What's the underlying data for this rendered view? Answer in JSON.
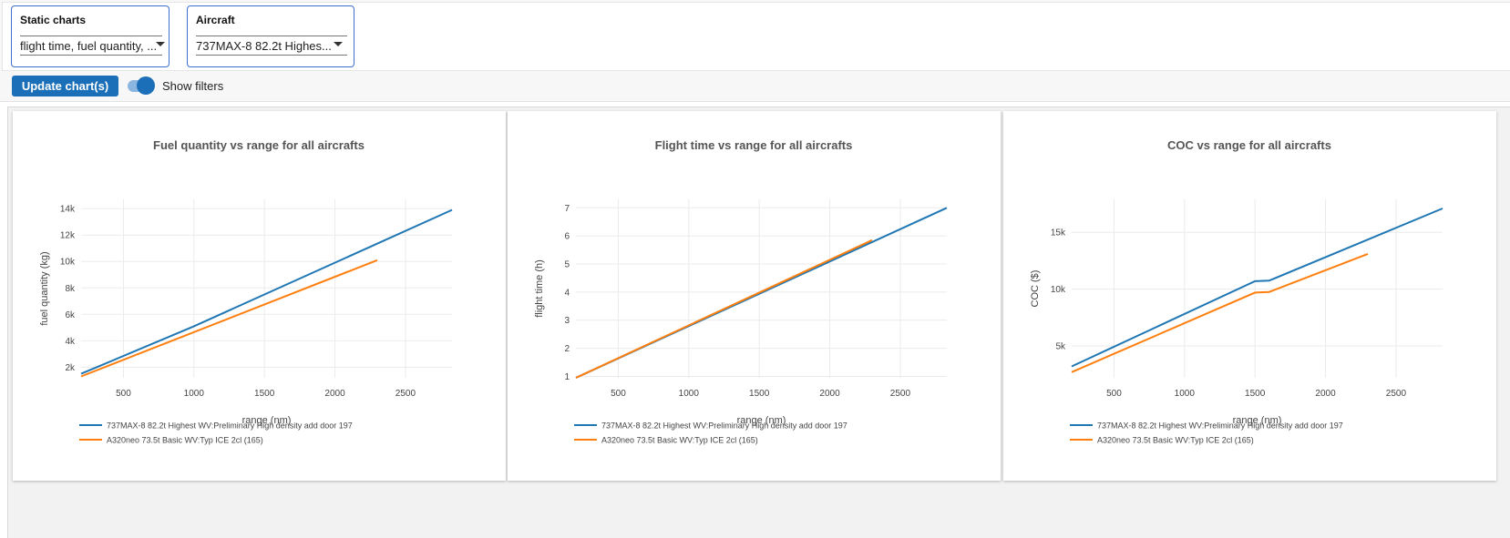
{
  "filters": {
    "static_charts": {
      "label": "Static charts",
      "value": "flight time, fuel quantity, ..."
    },
    "aircraft": {
      "label": "Aircraft",
      "value": "737MAX-8 82.2t Highes..."
    }
  },
  "toolbar": {
    "update_label": "Update chart(s)",
    "show_filters_label": "Show filters",
    "show_filters_on": true
  },
  "colors": {
    "series1": "#1f77b4",
    "series2": "#ff7f0e",
    "accent": "#1a6fb8"
  },
  "chart_data": [
    {
      "type": "line",
      "title": "Fuel quantity vs range for all aircrafts",
      "xlabel": "range (nm)",
      "ylabel": "fuel quantity (kg)",
      "xlim": [
        200,
        2830
      ],
      "ylim": [
        1200,
        14700
      ],
      "x_ticks": [
        500,
        1000,
        1500,
        2000,
        2500
      ],
      "y_ticks": [
        2000,
        4000,
        6000,
        8000,
        10000,
        12000,
        14000
      ],
      "y_tick_labels": [
        "2k",
        "4k",
        "6k",
        "8k",
        "10k",
        "12k",
        "14k"
      ],
      "grid": true,
      "legend_position": "bottom-left",
      "series": [
        {
          "name": "737MAX-8 82.2t Highest WV:Preliminary High density add door 197",
          "color": "#1f77b4",
          "x": [
            200,
            1000,
            2830
          ],
          "y": [
            1500,
            5100,
            13900
          ]
        },
        {
          "name": "A320neo 73.5t Basic WV:Typ ICE 2cl (165)",
          "color": "#ff7f0e",
          "x": [
            200,
            2300
          ],
          "y": [
            1300,
            10100
          ]
        }
      ]
    },
    {
      "type": "line",
      "title": "Flight time vs range for all aircrafts",
      "xlabel": "range (nm)",
      "ylabel": "flight time (h)",
      "xlim": [
        200,
        2830
      ],
      "ylim": [
        0.95,
        7.3
      ],
      "x_ticks": [
        500,
        1000,
        1500,
        2000,
        2500
      ],
      "y_ticks": [
        1,
        2,
        3,
        4,
        5,
        6,
        7
      ],
      "y_tick_labels": [
        "1",
        "2",
        "3",
        "4",
        "5",
        "6",
        "7"
      ],
      "grid": true,
      "legend_position": "bottom-left",
      "series": [
        {
          "name": "737MAX-8 82.2t Highest WV:Preliminary High density add door 197",
          "color": "#1f77b4",
          "x": [
            200,
            2830
          ],
          "y": [
            0.95,
            7.0
          ]
        },
        {
          "name": "A320neo 73.5t Basic WV:Typ ICE 2cl (165)",
          "color": "#ff7f0e",
          "x": [
            200,
            2300
          ],
          "y": [
            0.95,
            5.85
          ]
        }
      ]
    },
    {
      "type": "line",
      "title": "COC vs range for all aircrafts",
      "xlabel": "range (nm)",
      "ylabel": "COC ($)",
      "xlim": [
        200,
        2830
      ],
      "ylim": [
        2200,
        17900
      ],
      "x_ticks": [
        500,
        1000,
        1500,
        2000,
        2500
      ],
      "y_ticks": [
        5000,
        10000,
        15000
      ],
      "y_tick_labels": [
        "5k",
        "10k",
        "15k"
      ],
      "grid": true,
      "legend_position": "bottom-left",
      "series": [
        {
          "name": "737MAX-8 82.2t Highest WV:Preliminary High density add door 197",
          "color": "#1f77b4",
          "x": [
            200,
            1500,
            1600,
            2830
          ],
          "y": [
            3200,
            10700,
            10750,
            17100
          ]
        },
        {
          "name": "A320neo 73.5t Basic WV:Typ ICE 2cl (165)",
          "color": "#ff7f0e",
          "x": [
            200,
            1500,
            1600,
            2300
          ],
          "y": [
            2700,
            9700,
            9750,
            13100
          ]
        }
      ]
    }
  ]
}
